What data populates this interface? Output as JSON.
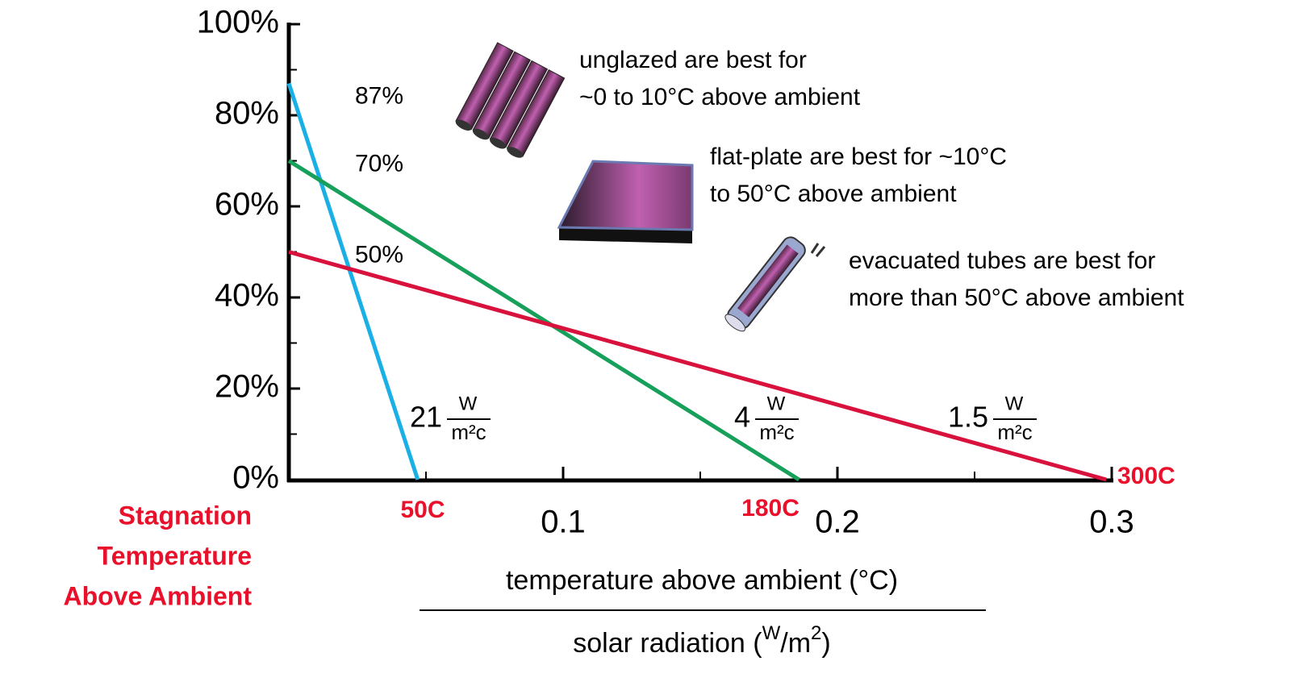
{
  "chart_data": {
    "type": "line",
    "xlim": [
      0,
      0.3
    ],
    "ylim": [
      0,
      100
    ],
    "xticks": [
      0.1,
      0.2,
      0.3
    ],
    "xminorticks": [
      0.05,
      0.15,
      0.25
    ],
    "yticks": [
      {
        "value": 0,
        "label": "0%"
      },
      {
        "value": 20,
        "label": "20%"
      },
      {
        "value": 40,
        "label": "40%"
      },
      {
        "value": 60,
        "label": "60%"
      },
      {
        "value": 80,
        "label": "80%"
      },
      {
        "value": 100,
        "label": "100%"
      }
    ],
    "yminorticks": [
      10,
      30,
      50,
      70,
      90
    ],
    "x_label_numerator": "temperature above ambient (°C)",
    "x_label_denominator": [
      "solar radiation (",
      "W",
      "/m",
      "2",
      ")"
    ],
    "y_intercept_caption": [
      "Stagnation",
      "Temperature",
      "Above Ambient"
    ],
    "series": [
      {
        "color": "#1ab0e6",
        "x": [
          0,
          0.047
        ],
        "values": [
          87,
          0
        ],
        "value_labels": [
          "87%",
          null
        ],
        "stagnation_label": "50C",
        "heat_loss": "21",
        "unit_num": "W",
        "unit_den": "m²c"
      },
      {
        "color": "#16a05a",
        "x": [
          0,
          0.186
        ],
        "values": [
          70,
          0
        ],
        "value_labels": [
          "70%",
          null
        ],
        "stagnation_label": "180C",
        "heat_loss": "4",
        "unit_num": "W",
        "unit_den": "m²c"
      },
      {
        "color": "#d8123c",
        "x": [
          0,
          0.298
        ],
        "values": [
          50,
          0
        ],
        "value_labels": [
          "50%",
          null
        ],
        "stagnation_label": "300C",
        "heat_loss": "1.5",
        "unit_num": "W",
        "unit_den": "m²c"
      }
    ],
    "annotations": [
      [
        "unglazed are best for",
        "~0 to 10°C above ambient"
      ],
      [
        "flat-plate are best for ~10°C",
        "to 50°C above ambient"
      ],
      [
        "evacuated tubes are best for",
        "more than 50°C above ambient"
      ]
    ]
  }
}
